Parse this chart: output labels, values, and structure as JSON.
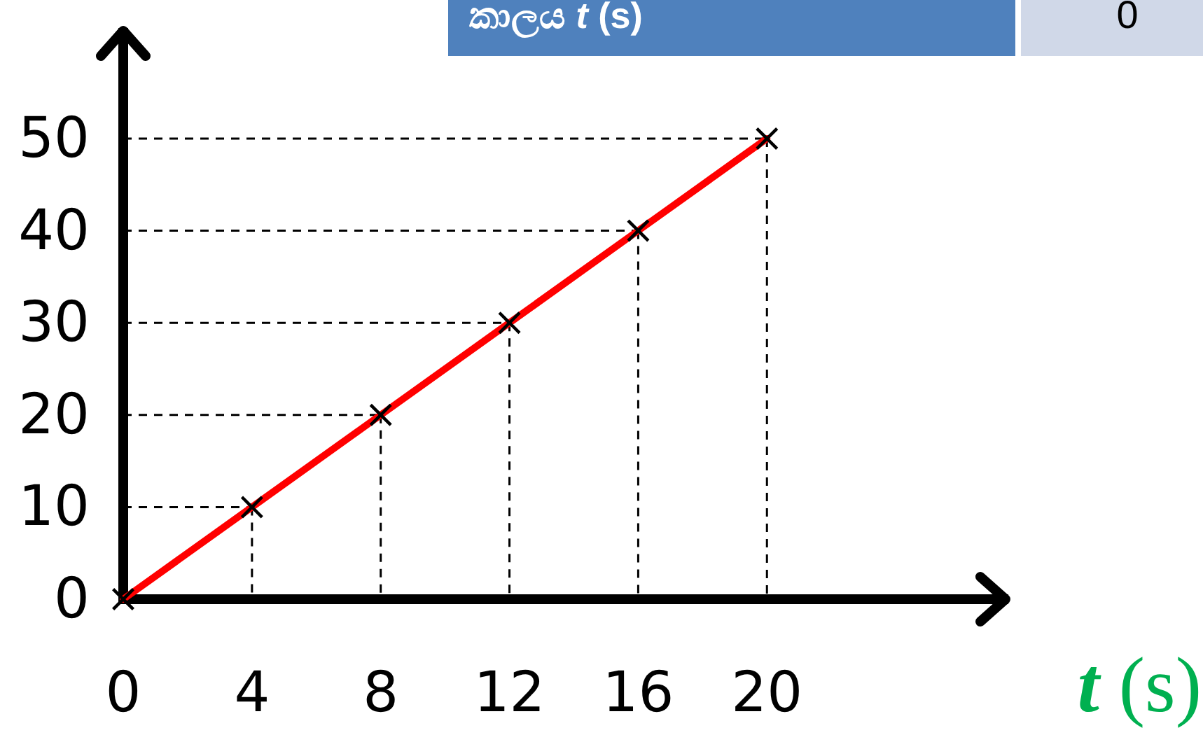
{
  "chart_data": {
    "type": "line",
    "xlabel": "*t* (s)",
    "x": [
      0,
      4,
      8,
      12,
      16,
      20
    ],
    "series": [
      {
        "color": "#ff0000",
        "values": [
          0,
          10,
          20,
          30,
          40,
          50
        ]
      }
    ],
    "xlim": [
      0,
      27.5
    ],
    "ylim": [
      0,
      62
    ],
    "xticks": [
      0,
      4,
      8,
      12,
      16,
      20
    ],
    "yticks": [
      0,
      10,
      20,
      30,
      40,
      50
    ],
    "marker": "cross",
    "ref_lines": [
      {
        "axis": "x",
        "value": 4,
        "line_style": "dashed"
      },
      {
        "axis": "x",
        "value": 8,
        "line_style": "dashed"
      },
      {
        "axis": "x",
        "value": 12,
        "line_style": "dashed"
      },
      {
        "axis": "x",
        "value": 16,
        "line_style": "dashed"
      },
      {
        "axis": "x",
        "value": 20,
        "line_style": "dashed"
      },
      {
        "axis": "y",
        "value": 10,
        "line_style": "dashed"
      },
      {
        "axis": "y",
        "value": 20,
        "line_style": "dashed"
      },
      {
        "axis": "y",
        "value": 30,
        "line_style": "dashed"
      },
      {
        "axis": "y",
        "value": 40,
        "line_style": "dashed"
      },
      {
        "axis": "y",
        "value": 50,
        "line_style": "dashed"
      }
    ],
    "annotations": [
      "කාලය *t* (s)",
      "0"
    ]
  }
}
